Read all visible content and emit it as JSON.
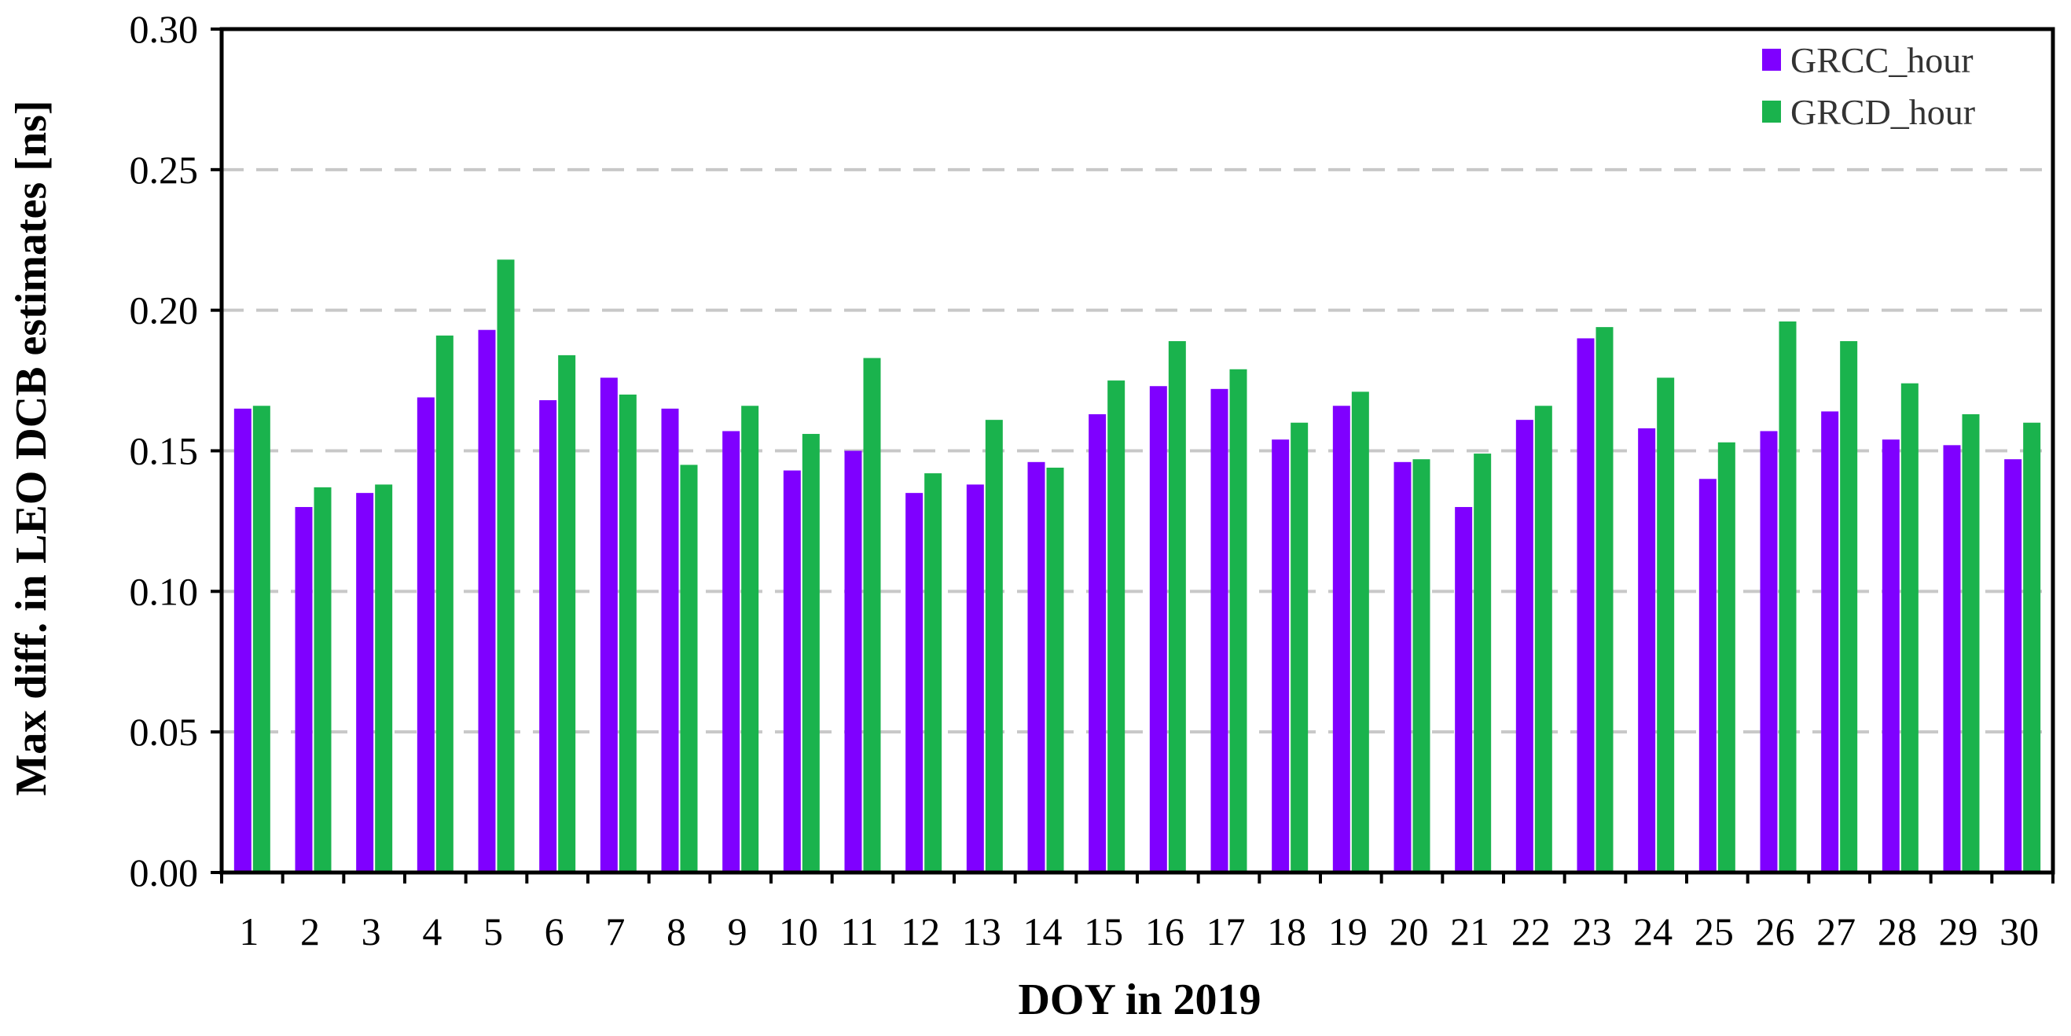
{
  "chart_data": {
    "type": "bar",
    "title": "",
    "xlabel": "DOY in 2019",
    "ylabel": "Max diff. in LEO DCB estimates [ns]",
    "ylim": [
      0,
      0.3
    ],
    "yticks": [
      "0.00",
      "0.05",
      "0.10",
      "0.15",
      "0.20",
      "0.25",
      "0.30"
    ],
    "grid": "horizontal dashed",
    "legend_position": "top-right",
    "categories": [
      "1",
      "2",
      "3",
      "4",
      "5",
      "6",
      "7",
      "8",
      "9",
      "10",
      "11",
      "12",
      "13",
      "14",
      "15",
      "16",
      "17",
      "18",
      "19",
      "20",
      "21",
      "22",
      "23",
      "24",
      "25",
      "26",
      "27",
      "28",
      "29",
      "30"
    ],
    "series": [
      {
        "name": "GRCC_hour",
        "color": "#7f00ff",
        "values": [
          0.165,
          0.13,
          0.135,
          0.169,
          0.193,
          0.168,
          0.176,
          0.165,
          0.157,
          0.143,
          0.15,
          0.135,
          0.138,
          0.146,
          0.163,
          0.173,
          0.172,
          0.154,
          0.166,
          0.146,
          0.13,
          0.161,
          0.19,
          0.158,
          0.14,
          0.157,
          0.164,
          0.154,
          0.152,
          0.147
        ]
      },
      {
        "name": "GRCD_hour",
        "color": "#1ab34d",
        "values": [
          0.166,
          0.137,
          0.138,
          0.191,
          0.218,
          0.184,
          0.17,
          0.145,
          0.166,
          0.156,
          0.183,
          0.142,
          0.161,
          0.144,
          0.175,
          0.189,
          0.179,
          0.16,
          0.171,
          0.147,
          0.149,
          0.166,
          0.194,
          0.176,
          0.153,
          0.196,
          0.189,
          0.174,
          0.163,
          0.16
        ]
      }
    ]
  }
}
